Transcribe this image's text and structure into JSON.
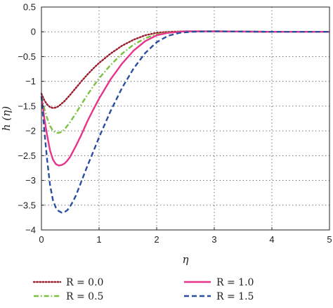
{
  "chart_data": {
    "type": "line",
    "xlabel": "η",
    "ylabel": "h (η)",
    "xlim": [
      0,
      5
    ],
    "ylim": [
      -4,
      0.5
    ],
    "x_ticks": [
      0,
      1,
      2,
      3,
      4,
      5
    ],
    "y_ticks": [
      0.5,
      0,
      -0.5,
      -1,
      -1.5,
      -2,
      -2.5,
      -3,
      -3.5,
      -4
    ],
    "x_tick_labels": [
      "0",
      "1",
      "2",
      "3",
      "4",
      "5"
    ],
    "y_tick_labels": [
      "0.5",
      "0",
      "−0.5",
      "−1",
      "−1.5",
      "−2",
      "−2.5",
      "−3",
      "−3.5",
      "−4"
    ],
    "grid": true,
    "legend_position": "bottom",
    "series": [
      {
        "name": "R = 0.0",
        "color": "#9b1c2c",
        "dash": "dotted",
        "x": [
          0,
          0.05,
          0.1,
          0.15,
          0.2,
          0.25,
          0.3,
          0.4,
          0.5,
          0.6,
          0.7,
          0.8,
          0.9,
          1.0,
          1.2,
          1.4,
          1.6,
          1.8,
          2.0,
          2.2,
          2.5,
          3.0,
          4.0,
          5.0
        ],
        "y": [
          -1.25,
          -1.38,
          -1.47,
          -1.52,
          -1.54,
          -1.53,
          -1.5,
          -1.4,
          -1.27,
          -1.13,
          -0.99,
          -0.86,
          -0.74,
          -0.63,
          -0.44,
          -0.28,
          -0.16,
          -0.07,
          -0.02,
          0.0,
          0.01,
          0.01,
          0.0,
          0.0
        ]
      },
      {
        "name": "R = 0.5",
        "color": "#7ac142",
        "dash": "dashdot",
        "x": [
          0,
          0.05,
          0.1,
          0.15,
          0.2,
          0.25,
          0.3,
          0.35,
          0.4,
          0.5,
          0.6,
          0.7,
          0.8,
          0.9,
          1.0,
          1.2,
          1.4,
          1.6,
          1.8,
          2.0,
          2.2,
          2.5,
          3.0,
          4.0,
          5.0
        ],
        "y": [
          -1.3,
          -1.55,
          -1.75,
          -1.9,
          -2.0,
          -2.04,
          -2.04,
          -2.02,
          -1.97,
          -1.82,
          -1.64,
          -1.45,
          -1.27,
          -1.1,
          -0.94,
          -0.67,
          -0.44,
          -0.26,
          -0.13,
          -0.05,
          -0.01,
          0.01,
          0.01,
          0.0,
          0.0
        ]
      },
      {
        "name": "R = 1.0",
        "color": "#e8338a",
        "dash": "solid",
        "x": [
          0,
          0.05,
          0.1,
          0.15,
          0.2,
          0.25,
          0.3,
          0.35,
          0.4,
          0.45,
          0.5,
          0.6,
          0.7,
          0.8,
          0.9,
          1.0,
          1.2,
          1.4,
          1.6,
          1.8,
          2.0,
          2.2,
          2.5,
          3.0,
          4.0,
          5.0
        ],
        "y": [
          -1.3,
          -1.75,
          -2.1,
          -2.4,
          -2.58,
          -2.67,
          -2.7,
          -2.69,
          -2.66,
          -2.6,
          -2.52,
          -2.3,
          -2.06,
          -1.8,
          -1.57,
          -1.35,
          -0.96,
          -0.64,
          -0.38,
          -0.19,
          -0.07,
          -0.02,
          0.01,
          0.01,
          0.0,
          0.0
        ]
      },
      {
        "name": "R = 1.5",
        "color": "#2b4fa0",
        "dash": "dashed",
        "x": [
          0,
          0.05,
          0.1,
          0.15,
          0.2,
          0.25,
          0.3,
          0.35,
          0.4,
          0.45,
          0.5,
          0.55,
          0.6,
          0.7,
          0.8,
          0.9,
          1.0,
          1.2,
          1.4,
          1.6,
          1.8,
          2.0,
          2.2,
          2.4,
          2.6,
          3.0,
          4.0,
          5.0
        ],
        "y": [
          -1.3,
          -2.0,
          -2.6,
          -3.1,
          -3.4,
          -3.55,
          -3.62,
          -3.65,
          -3.64,
          -3.6,
          -3.52,
          -3.42,
          -3.3,
          -3.0,
          -2.7,
          -2.42,
          -2.13,
          -1.6,
          -1.13,
          -0.74,
          -0.43,
          -0.21,
          -0.08,
          -0.02,
          0.0,
          0.01,
          0.0,
          0.0
        ]
      }
    ]
  }
}
